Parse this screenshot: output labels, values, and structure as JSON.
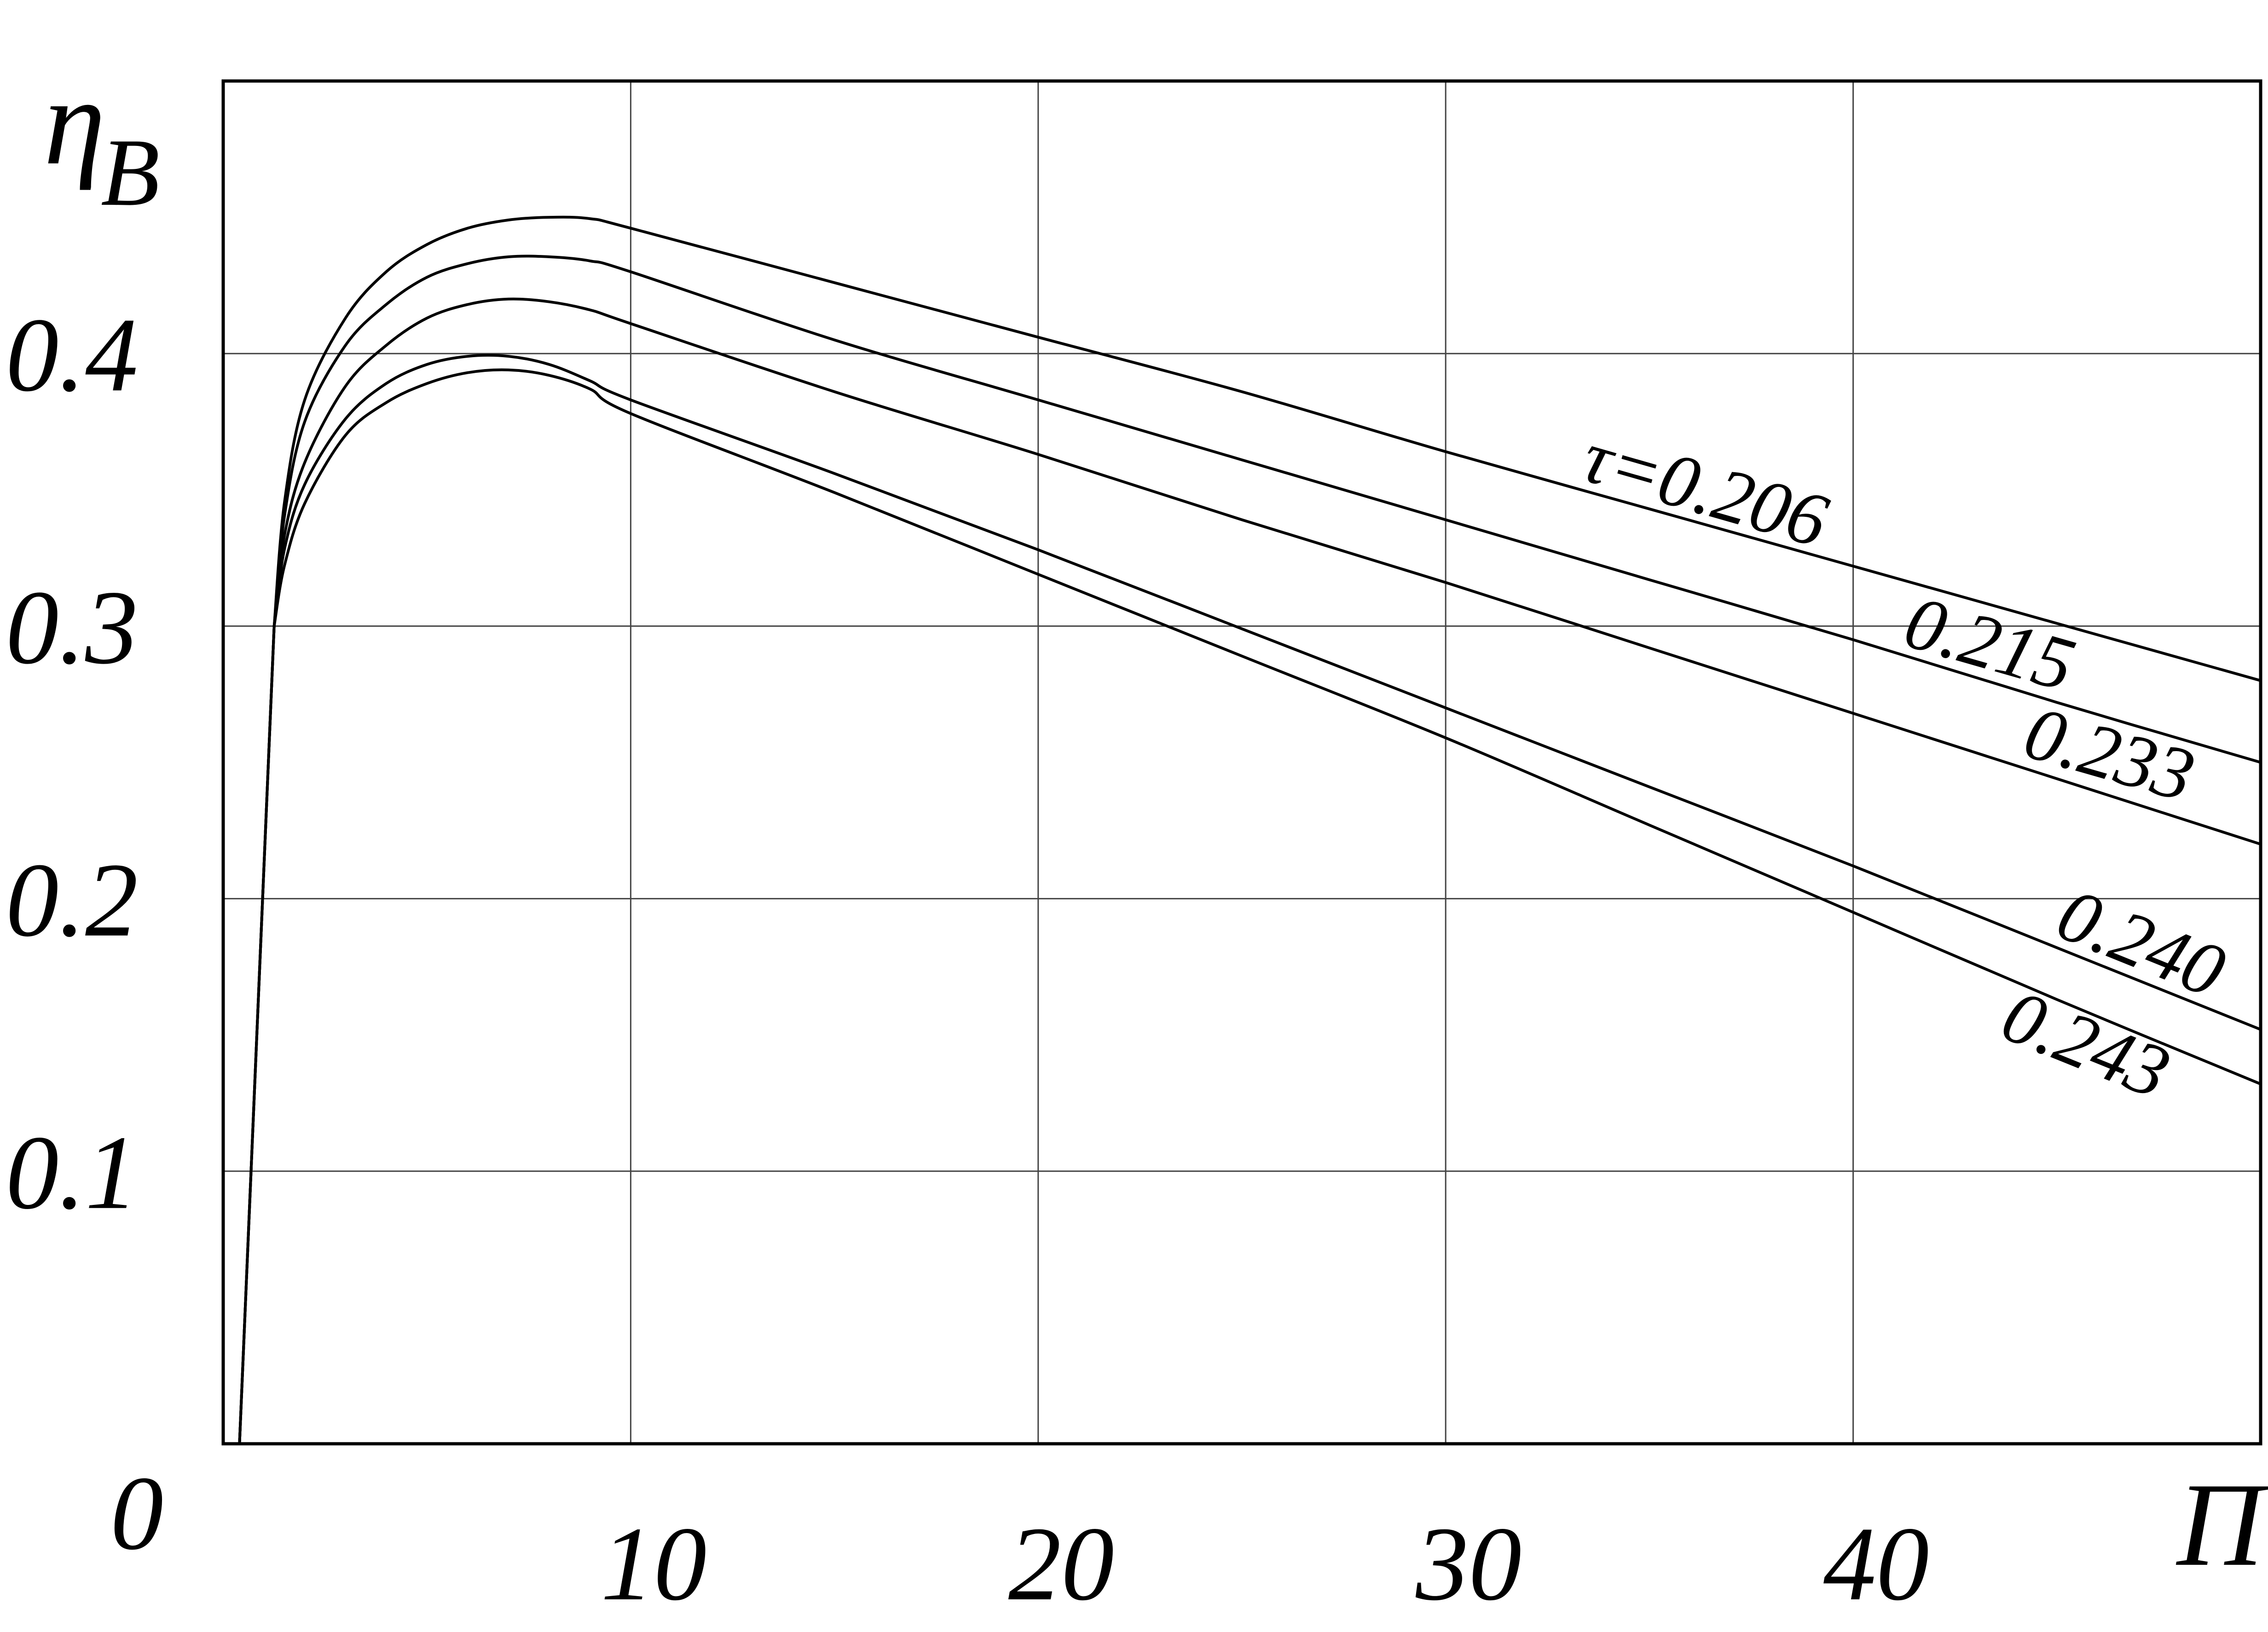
{
  "chart_data": {
    "type": "line",
    "xlabel": "Π",
    "ylabel_main": "η",
    "ylabel_sub": "B",
    "origin_label": "0",
    "xlim": [
      0,
      50
    ],
    "ylim": [
      0,
      0.5
    ],
    "x_ticks": [
      10,
      20,
      30,
      40
    ],
    "x_tick_labels": [
      "10",
      "20",
      "30",
      "40"
    ],
    "y_ticks": [
      0.1,
      0.2,
      0.3,
      0.4
    ],
    "y_tick_labels": [
      "0.1",
      "0.2",
      "0.3",
      "0.4"
    ],
    "grid": true,
    "series": [
      {
        "name": "τ=0.206",
        "x": [
          0.4,
          1.25,
          1.5,
          2.0,
          3.0,
          4.0,
          5.0,
          6.0,
          7.0,
          8.0,
          9.0,
          10.0,
          15.0,
          20.0,
          25.0,
          30.0,
          35.0,
          40.0,
          45.0,
          50.0
        ],
        "y": [
          0.0,
          0.3,
          0.345,
          0.383,
          0.413,
          0.43,
          0.44,
          0.446,
          0.449,
          0.45,
          0.4495,
          0.446,
          0.426,
          0.406,
          0.386,
          0.364,
          0.343,
          0.322,
          0.301,
          0.28
        ]
      },
      {
        "name": "0.215",
        "x": [
          0.4,
          1.25,
          1.5,
          2.0,
          3.0,
          4.0,
          5.0,
          6.0,
          7.0,
          8.0,
          9.0,
          10.0,
          15.0,
          20.0,
          25.0,
          30.0,
          35.0,
          40.0,
          45.0,
          50.0
        ],
        "y": [
          0.0,
          0.3,
          0.34,
          0.375,
          0.403,
          0.418,
          0.428,
          0.433,
          0.4355,
          0.4355,
          0.434,
          0.43,
          0.405,
          0.383,
          0.361,
          0.339,
          0.317,
          0.295,
          0.272,
          0.25
        ]
      },
      {
        "name": "0.233",
        "x": [
          0.4,
          1.25,
          1.5,
          2.0,
          3.0,
          4.0,
          5.0,
          6.0,
          7.0,
          8.0,
          9.0,
          10.0,
          15.0,
          20.0,
          25.0,
          30.0,
          35.0,
          40.0,
          45.0,
          50.0
        ],
        "y": [
          0.0,
          0.3,
          0.333,
          0.36,
          0.388,
          0.403,
          0.413,
          0.418,
          0.42,
          0.419,
          0.416,
          0.411,
          0.386,
          0.363,
          0.339,
          0.316,
          0.292,
          0.268,
          0.244,
          0.22
        ]
      },
      {
        "name": "0.240",
        "x": [
          0.4,
          1.25,
          1.5,
          2.0,
          3.0,
          4.0,
          5.0,
          6.0,
          7.0,
          8.0,
          9.0,
          10.0,
          15.0,
          20.0,
          25.0,
          30.0,
          35.0,
          40.0,
          45.0,
          50.0
        ],
        "y": [
          0.0,
          0.3,
          0.328,
          0.352,
          0.376,
          0.389,
          0.396,
          0.399,
          0.399,
          0.396,
          0.39,
          0.383,
          0.356,
          0.328,
          0.299,
          0.27,
          0.241,
          0.212,
          0.182,
          0.152
        ]
      },
      {
        "name": "0.243",
        "x": [
          0.4,
          1.25,
          1.5,
          2.0,
          3.0,
          4.0,
          5.0,
          6.0,
          7.0,
          8.0,
          9.0,
          10.0,
          15.0,
          20.0,
          25.0,
          30.0,
          35.0,
          40.0,
          45.0,
          50.0
        ],
        "y": [
          0.0,
          0.3,
          0.322,
          0.345,
          0.37,
          0.382,
          0.389,
          0.393,
          0.394,
          0.392,
          0.387,
          0.378,
          0.349,
          0.319,
          0.289,
          0.259,
          0.227,
          0.195,
          0.163,
          0.132
        ]
      }
    ]
  }
}
